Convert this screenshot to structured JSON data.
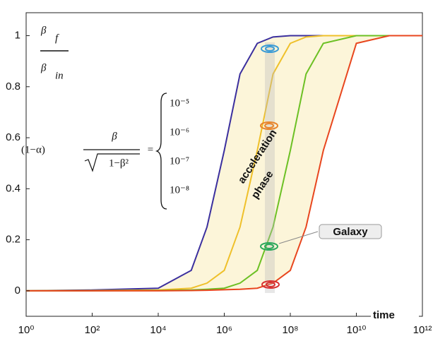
{
  "chart_data": {
    "type": "line",
    "ylabel": {
      "numerator": "β",
      "numerator_sub": "f",
      "denominator": "β",
      "denominator_sub": "in"
    },
    "xlabel": "time",
    "x": [
      1,
      100,
      10000,
      100000,
      300000,
      1000000,
      3000000,
      10000000,
      30000000,
      100000000,
      300000000,
      1000000000,
      10000000000,
      100000000000,
      1000000000000
    ],
    "series": [
      {
        "name": "10⁻⁵",
        "color": "#3b2f9e",
        "values": [
          0,
          0.003,
          0.01,
          0.08,
          0.25,
          0.55,
          0.85,
          0.97,
          0.995,
          1,
          1,
          1,
          1,
          1,
          1
        ]
      },
      {
        "name": "10⁻⁶",
        "color": "#efc02a",
        "values": [
          0,
          0.001,
          0.003,
          0.01,
          0.03,
          0.08,
          0.25,
          0.55,
          0.85,
          0.97,
          0.995,
          1,
          1,
          1,
          1
        ]
      },
      {
        "name": "10⁻⁷",
        "color": "#6cc024",
        "values": [
          0,
          0,
          0.001,
          0.003,
          0.006,
          0.01,
          0.03,
          0.08,
          0.25,
          0.55,
          0.85,
          0.97,
          1,
          1,
          1
        ]
      },
      {
        "name": "10⁻⁸",
        "color": "#e8461e",
        "values": [
          0,
          0,
          0,
          0.001,
          0.002,
          0.004,
          0.006,
          0.01,
          0.03,
          0.08,
          0.25,
          0.55,
          0.97,
          1,
          1
        ]
      }
    ],
    "xlim": [
      1,
      1000000000000
    ],
    "log_x": true,
    "xticks": [
      {
        "value": 1,
        "label": "10⁰"
      },
      {
        "value": 100,
        "label": "10²"
      },
      {
        "value": 10000,
        "label": "10⁴"
      },
      {
        "value": 1000000,
        "label": "10⁶"
      },
      {
        "value": 100000000,
        "label": "10⁸"
      },
      {
        "value": 10000000000,
        "label": "10¹⁰"
      },
      {
        "value": 1000000000000,
        "label": "10¹²"
      }
    ],
    "ylim": [
      -0.1,
      1.09
    ],
    "yticks": [
      0,
      0.2,
      0.4,
      0.6,
      0.8,
      1
    ],
    "formula": {
      "prefix": "(1−α)",
      "numerator": "β",
      "denominator": "1−β²",
      "equals": "="
    },
    "annotations": {
      "phase_line1": "acceleration",
      "phase_line2": "phase",
      "galaxy": "Galaxy"
    }
  }
}
